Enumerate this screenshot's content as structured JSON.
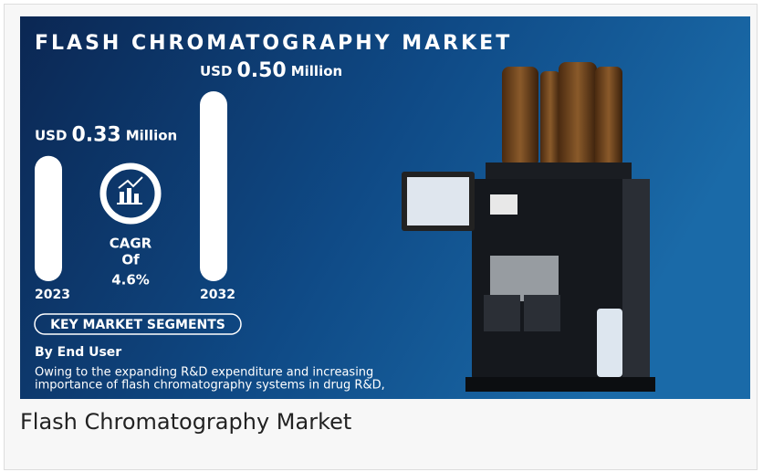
{
  "infographic": {
    "title": "FLASH CHROMATOGRAPHY MARKET",
    "bars": [
      {
        "currency": "USD",
        "value": 0.33,
        "label": "0.33",
        "unit": "Million",
        "year": "2023"
      },
      {
        "currency": "USD",
        "value": 0.5,
        "label": "0.50",
        "unit": "Million",
        "year": "2032"
      }
    ],
    "cagr": {
      "line1": "CAGR",
      "line2": "Of",
      "rate": "4.6%"
    },
    "segments_heading": "KEY MARKET SEGMENTS",
    "segment": "By End User",
    "description": [
      "Owing to the expanding R&D expenditure and increasing",
      "importance of flash chromatography systems in drug R&D,"
    ]
  },
  "caption": "Flash Chromatography Market"
}
